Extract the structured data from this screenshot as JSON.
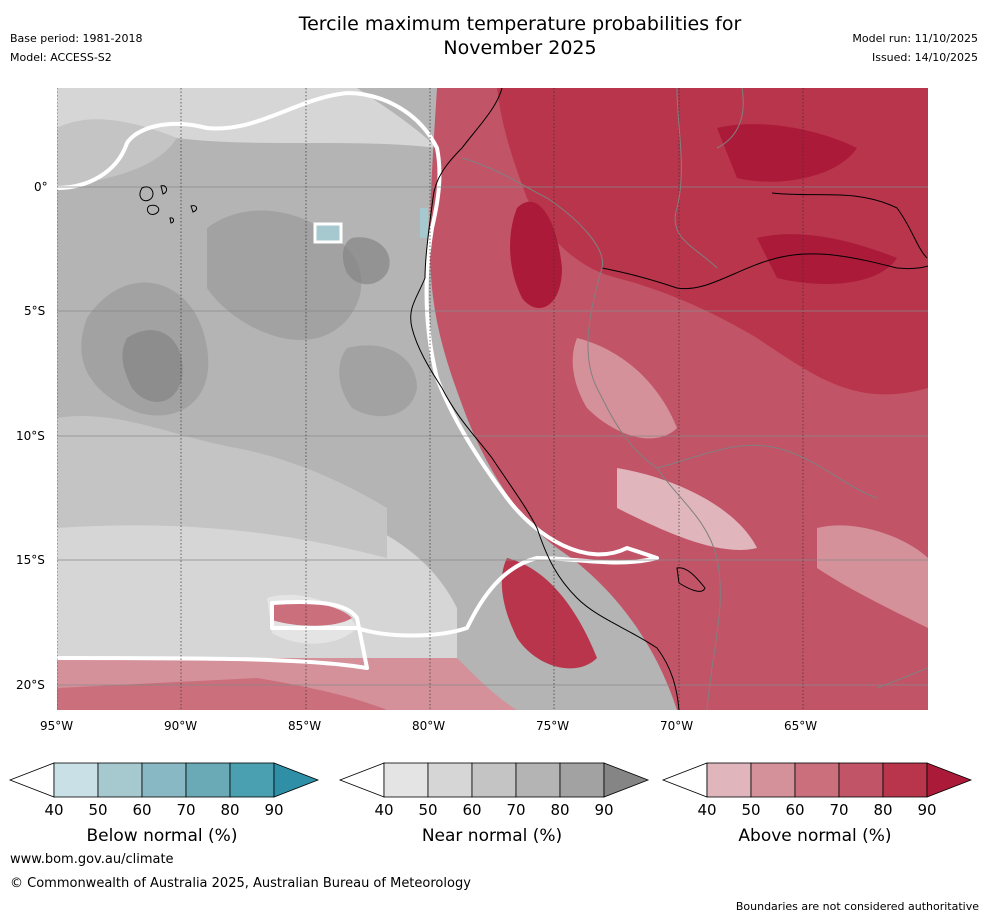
{
  "header": {
    "title_line1": "Tercile maximum temperature probabilities for",
    "title_line2": "November 2025",
    "base_period": "Base period: 1981-2018",
    "model": "Model: ACCESS-S2",
    "model_run": "Model run: 11/10/2025",
    "issued": "Issued: 14/10/2025"
  },
  "map": {
    "lat_labels": [
      "0°",
      "5°S",
      "10°S",
      "15°S",
      "20°S"
    ],
    "lon_labels": [
      "95°W",
      "90°W",
      "85°W",
      "80°W",
      "75°W",
      "70°W",
      "65°W"
    ]
  },
  "colorbars": [
    {
      "name": "below",
      "title": "Below normal (%)",
      "ticks": [
        "40",
        "50",
        "60",
        "70",
        "80",
        "90"
      ],
      "colors": [
        "#ffffff",
        "#c9e1e6",
        "#a6c8cf",
        "#88b8c4",
        "#6aa9b6",
        "#4a9fb0",
        "#2f8fa6"
      ]
    },
    {
      "name": "near",
      "title": "Near normal (%)",
      "ticks": [
        "40",
        "50",
        "60",
        "70",
        "80",
        "90"
      ],
      "colors": [
        "#ffffff",
        "#e4e4e4",
        "#d6d6d6",
        "#c4c4c4",
        "#b4b4b4",
        "#a2a2a2",
        "#858585"
      ]
    },
    {
      "name": "above",
      "title": "Above normal (%)",
      "ticks": [
        "40",
        "50",
        "60",
        "70",
        "80",
        "90"
      ],
      "colors": [
        "#ffffff",
        "#e0b6bc",
        "#d4919a",
        "#cb6f7c",
        "#c25467",
        "#b8354b",
        "#ac1a3a"
      ]
    }
  ],
  "footer": {
    "url": "www.bom.gov.au/climate",
    "copyright": "© Commonwealth of Australia 2025, Australian Bureau of Meteorology",
    "disclaimer": "Boundaries are not considered authoritative"
  }
}
